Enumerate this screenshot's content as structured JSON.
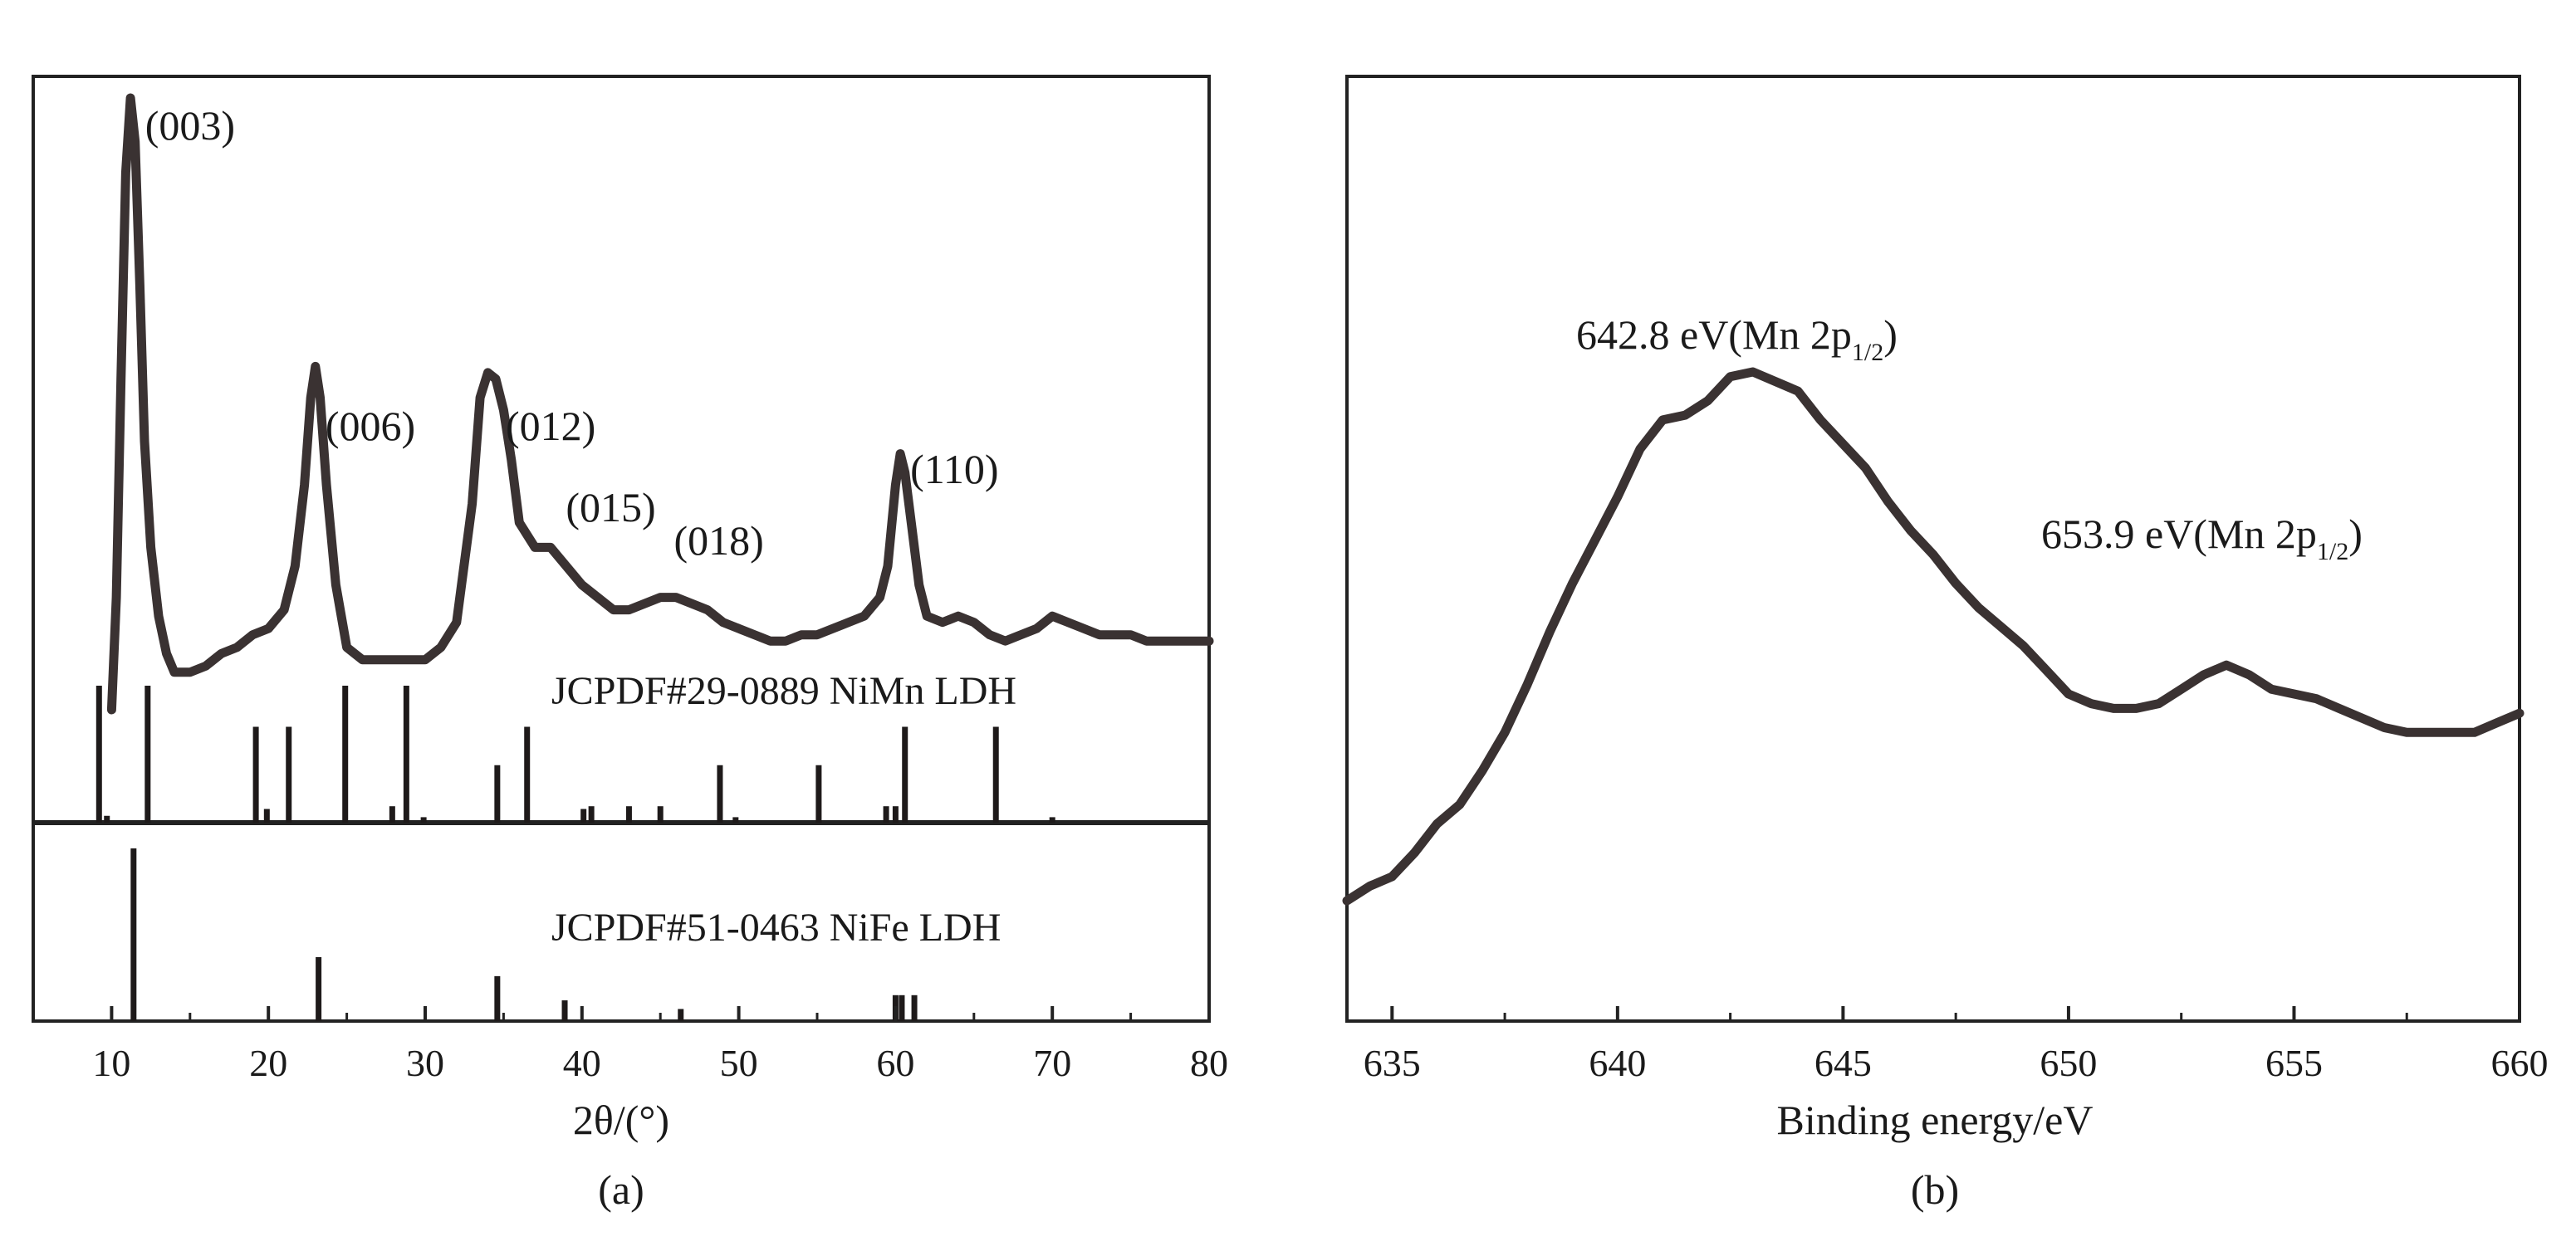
{
  "chart_data": [
    {
      "type": "line",
      "panel": "(a)",
      "xlabel": "2θ/(°)",
      "ylabel": "",
      "xlim": [
        5,
        80
      ],
      "xticks": [
        10,
        20,
        30,
        40,
        50,
        60,
        70,
        80
      ],
      "y_ticks_shown": false,
      "grid": false,
      "series": [
        {
          "x": [
            10.0,
            10.3,
            10.6,
            10.9,
            11.2,
            11.5,
            11.8,
            12.1,
            12.5,
            13.0,
            13.5,
            14.0,
            15,
            16,
            17,
            18,
            19,
            20,
            21,
            21.7,
            22.3,
            22.7,
            23.0,
            23.3,
            23.7,
            24.3,
            25.0,
            26,
            27,
            28,
            29,
            30,
            31,
            32,
            33,
            33.5,
            34.0,
            34.5,
            35.0,
            35.5,
            36,
            37,
            38,
            39,
            40,
            41,
            42,
            43,
            44,
            45,
            46,
            47,
            48,
            49,
            50,
            51,
            52,
            53,
            54,
            55,
            56,
            57,
            58,
            59,
            59.5,
            60.0,
            60.3,
            60.6,
            61.0,
            61.5,
            62.0,
            63,
            64,
            65,
            66,
            67,
            68,
            69,
            70,
            71,
            72,
            73,
            74,
            75,
            76,
            77,
            78,
            79,
            80
          ],
          "y": [
            2,
            20,
            55,
            88,
            100,
            93,
            70,
            45,
            28,
            17,
            11,
            8,
            8,
            9,
            11,
            12,
            14,
            15,
            18,
            25,
            38,
            52,
            57,
            52,
            38,
            22,
            12,
            10,
            10,
            10,
            10,
            10,
            12,
            16,
            35,
            52,
            56,
            55,
            50,
            42,
            32,
            28,
            28,
            25,
            22,
            20,
            18,
            18,
            19,
            20,
            20,
            19,
            18,
            16,
            15,
            14,
            13,
            13,
            14,
            14,
            15,
            16,
            17,
            20,
            25,
            38,
            43,
            40,
            32,
            22,
            17,
            16,
            17,
            16,
            14,
            13,
            14,
            15,
            17,
            16,
            15,
            14,
            14,
            14,
            13,
            13,
            13,
            13,
            13
          ]
        }
      ],
      "peak_labels": [
        {
          "text": "(003)",
          "x": 11.5
        },
        {
          "text": "(006)",
          "x": 23.0
        },
        {
          "text": "(012)",
          "x": 34.5
        },
        {
          "text": "(015)",
          "x": 39.5
        },
        {
          "text": "(018)",
          "x": 46.5
        },
        {
          "text": "(110)",
          "x": 60.3
        }
      ],
      "reference_patterns": [
        {
          "name": "JCPDF#29-0889 NiMn LDH",
          "lines": [
            {
              "x": 9.2,
              "h": 1.0
            },
            {
              "x": 9.7,
              "h": 0.05
            },
            {
              "x": 12.3,
              "h": 1.0
            },
            {
              "x": 19.2,
              "h": 0.7
            },
            {
              "x": 19.9,
              "h": 0.1
            },
            {
              "x": 21.3,
              "h": 0.7
            },
            {
              "x": 24.9,
              "h": 1.0
            },
            {
              "x": 27.9,
              "h": 0.12
            },
            {
              "x": 28.8,
              "h": 1.0
            },
            {
              "x": 29.9,
              "h": 0.04
            },
            {
              "x": 34.6,
              "h": 0.42
            },
            {
              "x": 36.5,
              "h": 0.7
            },
            {
              "x": 40.1,
              "h": 0.1
            },
            {
              "x": 40.6,
              "h": 0.12
            },
            {
              "x": 43.0,
              "h": 0.12
            },
            {
              "x": 45.0,
              "h": 0.12
            },
            {
              "x": 48.8,
              "h": 0.42
            },
            {
              "x": 49.8,
              "h": 0.04
            },
            {
              "x": 55.1,
              "h": 0.42
            },
            {
              "x": 59.4,
              "h": 0.12
            },
            {
              "x": 60.0,
              "h": 0.12
            },
            {
              "x": 60.6,
              "h": 0.7
            },
            {
              "x": 66.4,
              "h": 0.7
            },
            {
              "x": 70.0,
              "h": 0.04
            }
          ]
        },
        {
          "name": "JCPDF#51-0463 NiFe LDH",
          "lines": [
            {
              "x": 11.4,
              "h": 1.0
            },
            {
              "x": 23.2,
              "h": 0.37
            },
            {
              "x": 34.6,
              "h": 0.26
            },
            {
              "x": 38.9,
              "h": 0.12
            },
            {
              "x": 46.3,
              "h": 0.07
            },
            {
              "x": 60.0,
              "h": 0.15
            },
            {
              "x": 60.4,
              "h": 0.15
            },
            {
              "x": 61.2,
              "h": 0.15
            }
          ]
        }
      ]
    },
    {
      "type": "line",
      "panel": "(b)",
      "xlabel": "Binding energy/eV",
      "ylabel": "",
      "xlim": [
        634,
        660
      ],
      "xticks": [
        635,
        640,
        645,
        650,
        655,
        660
      ],
      "y_ticks_shown": false,
      "grid": false,
      "series": [
        {
          "x": [
            634.0,
            634.5,
            635.0,
            635.5,
            636.0,
            636.5,
            637.0,
            637.5,
            638.0,
            638.5,
            639.0,
            639.5,
            640.0,
            640.5,
            641.0,
            641.5,
            642.0,
            642.5,
            643.0,
            643.5,
            644.0,
            644.5,
            645.0,
            645.5,
            646.0,
            646.5,
            647.0,
            647.5,
            648.0,
            648.5,
            649.0,
            649.5,
            650.0,
            650.5,
            651.0,
            651.5,
            652.0,
            652.5,
            653.0,
            653.5,
            654.0,
            654.5,
            655.0,
            655.5,
            656.0,
            656.5,
            657.0,
            657.5,
            658.0,
            658.5,
            659.0,
            659.5,
            660.0
          ],
          "y": [
            0,
            3,
            5,
            10,
            16,
            20,
            27,
            35,
            45,
            56,
            66,
            75,
            84,
            94,
            100,
            101,
            104,
            109,
            110,
            108,
            106,
            100,
            95,
            90,
            83,
            77,
            72,
            66,
            61,
            57,
            53,
            48,
            43,
            41,
            40,
            40,
            41,
            44,
            47,
            49,
            47,
            44,
            43,
            42,
            40,
            38,
            36,
            35,
            35,
            35,
            35,
            37,
            39
          ]
        }
      ],
      "annotations": [
        {
          "text": "642.8 eV(Mn 2p",
          "sub": "1/2",
          "suffix": ")"
        },
        {
          "text": "653.9 eV(Mn 2p",
          "sub": "1/2",
          "suffix": ")"
        }
      ]
    }
  ]
}
